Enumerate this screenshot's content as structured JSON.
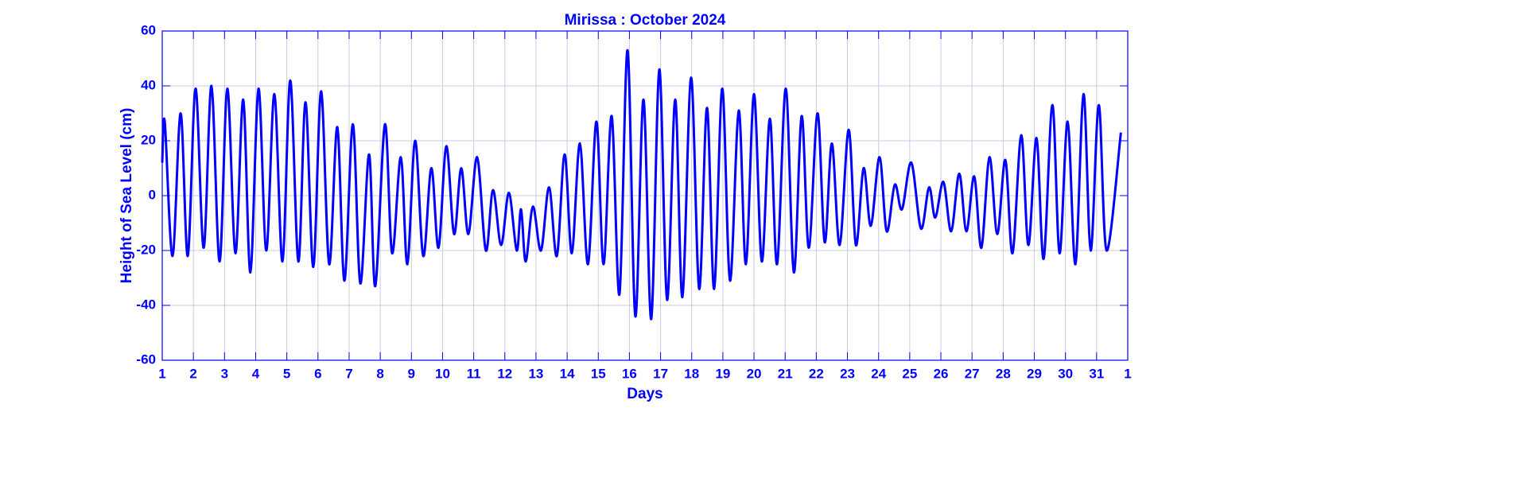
{
  "chart_data": {
    "type": "line",
    "title": "Mirissa : October 2024",
    "xlabel": "Days",
    "ylabel": "Height of Sea Level (cm)",
    "xlim": [
      1,
      32
    ],
    "ylim": [
      -60,
      60
    ],
    "xticks": [
      1,
      2,
      3,
      4,
      5,
      6,
      7,
      8,
      9,
      10,
      11,
      12,
      13,
      14,
      15,
      16,
      17,
      18,
      19,
      20,
      21,
      22,
      23,
      24,
      25,
      26,
      27,
      28,
      29,
      30,
      31,
      {
        "value": 32,
        "label": "1"
      }
    ],
    "yticks": [
      -60,
      -40,
      -20,
      0,
      20,
      40,
      60
    ],
    "grid": true,
    "x": [
      1.0,
      1.08,
      1.33,
      1.59,
      1.82,
      2.07,
      2.33,
      2.58,
      2.84,
      3.09,
      3.35,
      3.6,
      3.83,
      4.09,
      4.34,
      4.6,
      4.86,
      5.11,
      5.37,
      5.6,
      5.85,
      6.1,
      6.36,
      6.62,
      6.85,
      7.12,
      7.36,
      7.64,
      7.84,
      8.15,
      8.38,
      8.66,
      8.87,
      9.12,
      9.38,
      9.64,
      9.87,
      10.12,
      10.37,
      10.6,
      10.83,
      11.11,
      11.39,
      11.62,
      11.88,
      12.13,
      12.38,
      12.52,
      12.67,
      12.9,
      13.16,
      13.42,
      13.67,
      13.92,
      14.15,
      14.41,
      14.67,
      14.94,
      15.17,
      15.43,
      15.68,
      15.94,
      16.19,
      16.45,
      16.7,
      16.96,
      17.21,
      17.47,
      17.7,
      17.98,
      18.24,
      18.49,
      18.72,
      18.98,
      19.23,
      19.51,
      19.74,
      20.0,
      20.25,
      20.51,
      20.74,
      21.02,
      21.28,
      21.53,
      21.76,
      22.04,
      22.27,
      22.5,
      22.75,
      23.04,
      23.27,
      23.52,
      23.75,
      24.03,
      24.26,
      24.52,
      24.75,
      25.05,
      25.36,
      25.62,
      25.82,
      26.08,
      26.33,
      26.59,
      26.82,
      27.07,
      27.3,
      27.56,
      27.81,
      28.07,
      28.3,
      28.58,
      28.81,
      29.07,
      29.3,
      29.58,
      29.81,
      30.07,
      30.32,
      30.58,
      30.81,
      31.07,
      31.32,
      31.78
    ],
    "series": [
      {
        "color": "#0000ff",
        "values": [
          12,
          27,
          -22,
          30,
          -22,
          39,
          -19,
          40,
          -24,
          39,
          -21,
          35,
          -28,
          39,
          -20,
          37,
          -24,
          42,
          -24,
          34,
          -26,
          38,
          -25,
          25,
          -31,
          26,
          -32,
          15,
          -33,
          26,
          -21,
          14,
          -25,
          20,
          -22,
          10,
          -19,
          18,
          -14,
          10,
          -14,
          14,
          -20,
          2,
          -18,
          1,
          -20,
          -5,
          -24,
          -4,
          -20,
          3,
          -22,
          15,
          -21,
          19,
          -25,
          27,
          -25,
          29,
          -36,
          53,
          -44,
          35,
          -45,
          46,
          -38,
          35,
          -37,
          43,
          -34,
          32,
          -34,
          39,
          -31,
          31,
          -25,
          37,
          -24,
          28,
          -25,
          39,
          -28,
          29,
          -19,
          30,
          -17,
          19,
          -18,
          24,
          -18,
          10,
          -11,
          14,
          -13,
          4,
          -5,
          12,
          -12,
          3,
          -8,
          5,
          -13,
          8,
          -13,
          7,
          -19,
          14,
          -14,
          13,
          -21,
          22,
          -18,
          21,
          -23,
          33,
          -21,
          27,
          -25,
          37,
          -20,
          33,
          -20,
          23
        ]
      }
    ]
  }
}
